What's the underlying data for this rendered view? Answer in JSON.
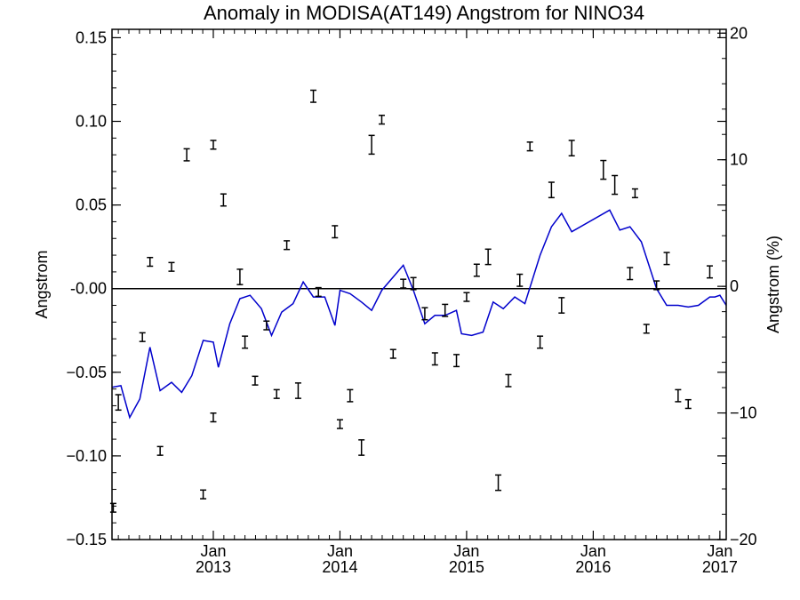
{
  "chart_data": {
    "type": "line",
    "title": "Anomaly in MODISA(AT149) Angstrom for NINO34",
    "ylabel": "Angstrom",
    "ylabel_right": "Angstrom (%)",
    "xlabel": "",
    "ylim": [
      -0.15,
      0.155
    ],
    "ylim_right": [
      -20,
      20.3
    ],
    "xlim": [
      2012.2,
      2017.05
    ],
    "grid": false,
    "legend": "none",
    "colors": {
      "line": "#0000cc",
      "axes": "#000000",
      "points": "#000000"
    },
    "y_ticks": [
      {
        "value": 0.15,
        "label": "0.15"
      },
      {
        "value": 0.1,
        "label": "0.10"
      },
      {
        "value": 0.05,
        "label": "0.05"
      },
      {
        "value": 0.0,
        "label": "-0.00"
      },
      {
        "value": -0.05,
        "label": "−0.05"
      },
      {
        "value": -0.1,
        "label": "−0.10"
      },
      {
        "value": -0.15,
        "label": "−0.15"
      }
    ],
    "y_ticks_right": [
      {
        "value": 20,
        "label": "20"
      },
      {
        "value": 10,
        "label": "10"
      },
      {
        "value": 0,
        "label": "0"
      },
      {
        "value": -10,
        "label": "−10"
      },
      {
        "value": -20,
        "label": "−20"
      }
    ],
    "x_ticks": [
      {
        "value": 2013.0,
        "month": "Jan",
        "year": "2013"
      },
      {
        "value": 2014.0,
        "month": "Jan",
        "year": "2014"
      },
      {
        "value": 2015.0,
        "month": "Jan",
        "year": "2015"
      },
      {
        "value": 2016.0,
        "month": "Jan",
        "year": "2016"
      },
      {
        "value": 2017.0,
        "month": "Jan",
        "year": "2017"
      }
    ],
    "series": [
      {
        "kind": "line",
        "color": "#0000cc",
        "points": [
          [
            2012.2,
            -0.059
          ],
          [
            2012.27,
            -0.058
          ],
          [
            2012.34,
            -0.077
          ],
          [
            2012.42,
            -0.066
          ],
          [
            2012.5,
            -0.035
          ],
          [
            2012.58,
            -0.061
          ],
          [
            2012.67,
            -0.056
          ],
          [
            2012.75,
            -0.062
          ],
          [
            2012.83,
            -0.052
          ],
          [
            2012.92,
            -0.031
          ],
          [
            2013.0,
            -0.032
          ],
          [
            2013.04,
            -0.047
          ],
          [
            2013.13,
            -0.021
          ],
          [
            2013.21,
            -0.006
          ],
          [
            2013.29,
            -0.004
          ],
          [
            2013.38,
            -0.012
          ],
          [
            2013.46,
            -0.028
          ],
          [
            2013.54,
            -0.014
          ],
          [
            2013.63,
            -0.009
          ],
          [
            2013.71,
            0.004
          ],
          [
            2013.79,
            -0.005
          ],
          [
            2013.88,
            -0.005
          ],
          [
            2013.96,
            -0.022
          ],
          [
            2014.0,
            -0.001
          ],
          [
            2014.08,
            -0.003
          ],
          [
            2014.17,
            -0.008
          ],
          [
            2014.25,
            -0.013
          ],
          [
            2014.33,
            -0.001
          ],
          [
            2014.5,
            0.014
          ],
          [
            2014.58,
            -0.001
          ],
          [
            2014.67,
            -0.021
          ],
          [
            2014.75,
            -0.016
          ],
          [
            2014.83,
            -0.016
          ],
          [
            2014.92,
            -0.013
          ],
          [
            2014.96,
            -0.027
          ],
          [
            2015.04,
            -0.028
          ],
          [
            2015.13,
            -0.026
          ],
          [
            2015.21,
            -0.008
          ],
          [
            2015.29,
            -0.012
          ],
          [
            2015.38,
            -0.005
          ],
          [
            2015.46,
            -0.009
          ],
          [
            2015.58,
            0.02
          ],
          [
            2015.67,
            0.037
          ],
          [
            2015.75,
            0.045
          ],
          [
            2015.83,
            0.034
          ],
          [
            2016.13,
            0.047
          ],
          [
            2016.21,
            0.035
          ],
          [
            2016.29,
            0.037
          ],
          [
            2016.38,
            0.028
          ],
          [
            2016.5,
            0.0
          ],
          [
            2016.58,
            -0.01
          ],
          [
            2016.67,
            -0.01
          ],
          [
            2016.75,
            -0.011
          ],
          [
            2016.83,
            -0.01
          ],
          [
            2016.92,
            -0.005
          ],
          [
            2016.96,
            -0.005
          ],
          [
            2017.0,
            -0.004
          ],
          [
            2017.05,
            -0.01
          ]
        ]
      },
      {
        "kind": "errorbar",
        "color": "#000000",
        "points": [
          [
            2012.21,
            -0.131,
            0.001
          ],
          [
            2012.25,
            -0.068,
            0.003
          ],
          [
            2012.44,
            -0.029,
            0.001
          ],
          [
            2012.5,
            0.016,
            0.001
          ],
          [
            2012.58,
            -0.097,
            0.001
          ],
          [
            2012.67,
            0.013,
            0.001
          ],
          [
            2012.79,
            0.08,
            0.002
          ],
          [
            2012.92,
            -0.123,
            0.001
          ],
          [
            2013.0,
            -0.077,
            0.001
          ],
          [
            2013.0,
            0.086,
            0.001
          ],
          [
            2013.08,
            0.053,
            0.002
          ],
          [
            2013.21,
            0.007,
            0.003
          ],
          [
            2013.25,
            -0.032,
            0.002
          ],
          [
            2013.33,
            -0.055,
            0.001
          ],
          [
            2013.42,
            -0.022,
            0.001
          ],
          [
            2013.5,
            -0.063,
            0.001
          ],
          [
            2013.58,
            0.026,
            0.001
          ],
          [
            2013.67,
            -0.061,
            0.003
          ],
          [
            2013.79,
            0.115,
            0.002
          ],
          [
            2013.83,
            -0.002,
            0.001
          ],
          [
            2013.96,
            0.034,
            0.002
          ],
          [
            2014.0,
            -0.081,
            0.001
          ],
          [
            2014.08,
            -0.064,
            0.002
          ],
          [
            2014.17,
            -0.095,
            0.003
          ],
          [
            2014.25,
            0.086,
            0.004
          ],
          [
            2014.33,
            0.101,
            0.001
          ],
          [
            2014.42,
            -0.039,
            0.001
          ],
          [
            2014.5,
            0.003,
            0.001
          ],
          [
            2014.58,
            0.003,
            0.002
          ],
          [
            2014.67,
            -0.015,
            0.002
          ],
          [
            2014.75,
            -0.042,
            0.002
          ],
          [
            2014.83,
            -0.013,
            0.002
          ],
          [
            2014.92,
            -0.043,
            0.002
          ],
          [
            2015.0,
            -0.005,
            0.001
          ],
          [
            2015.08,
            0.011,
            0.002
          ],
          [
            2015.17,
            0.019,
            0.003
          ],
          [
            2015.25,
            -0.116,
            0.003
          ],
          [
            2015.33,
            -0.055,
            0.002
          ],
          [
            2015.42,
            0.005,
            0.002
          ],
          [
            2015.5,
            0.085,
            0.001
          ],
          [
            2015.58,
            -0.032,
            0.002
          ],
          [
            2015.67,
            0.059,
            0.003
          ],
          [
            2015.75,
            -0.01,
            0.003
          ],
          [
            2015.83,
            0.084,
            0.003
          ],
          [
            2016.08,
            0.071,
            0.004
          ],
          [
            2016.17,
            0.062,
            0.004
          ],
          [
            2016.29,
            0.009,
            0.002
          ],
          [
            2016.33,
            0.057,
            0.001
          ],
          [
            2016.42,
            -0.024,
            0.001
          ],
          [
            2016.5,
            0.002,
            0.001
          ],
          [
            2016.58,
            0.018,
            0.002
          ],
          [
            2016.67,
            -0.064,
            0.002
          ],
          [
            2016.75,
            -0.069,
            0.001
          ],
          [
            2016.92,
            0.01,
            0.002
          ]
        ]
      }
    ]
  }
}
